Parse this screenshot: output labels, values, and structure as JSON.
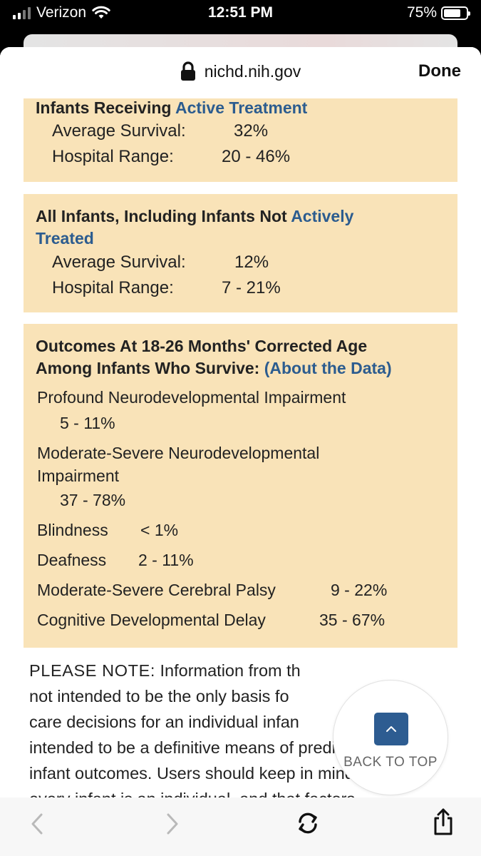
{
  "status_bar": {
    "carrier": "Verizon",
    "time": "12:51 PM",
    "battery": "75%",
    "battery_level": 0.75,
    "signal_bars_active": 2
  },
  "browser": {
    "url": "nichd.nih.gov",
    "done_label": "Done"
  },
  "box_active": {
    "title_plain": "Infants Receiving ",
    "title_link": "Active Treatment",
    "survival_label": "Average Survival:",
    "survival_value": "32%",
    "range_label": "Hospital Range:",
    "range_value": "20 - 46%"
  },
  "box_all": {
    "title_plain": "All Infants, Including Infants Not ",
    "title_link_1": "Actively",
    "title_link_2": "Treated",
    "survival_label": "Average Survival:",
    "survival_value": "12%",
    "range_label": "Hospital Range:",
    "range_value": "7 - 21%"
  },
  "box_outcomes": {
    "title_line1": "Outcomes At 18-26 Months' Corrected Age",
    "title_line2": "Among Infants Who Survive: ",
    "title_link": "(About the Data)",
    "profound_label": "Profound Neurodevelopmental Impairment",
    "profound_value": "5 - 11%",
    "moderate_label_1": "Moderate-Severe Neurodevelopmental",
    "moderate_label_2": "Impairment",
    "moderate_value": "37 - 78%",
    "blindness_label": "Blindness",
    "blindness_value": "< 1%",
    "deafness_label": "Deafness",
    "deafness_value": "2 - 11%",
    "palsy_label": "Moderate-Severe Cerebral Palsy",
    "palsy_value": "9 - 22%",
    "cognitive_label": "Cognitive Developmental Delay",
    "cognitive_value": "35 - 67%"
  },
  "note": {
    "heading": "PLEASE NOTE:",
    "line1": " Information from th",
    "line2": "not intended to be the only basis fo",
    "line3": "care decisions for an individual infan",
    "line4": "intended to be a definitive means of predicting",
    "line5": "infant outcomes. Users should keep in mind that",
    "line6": "every infant is an individual, and that factors"
  },
  "back_to_top": {
    "label": "BACK TO TOP"
  },
  "icons": {
    "wifi": "wifi-icon",
    "lock": "lock-icon",
    "back": "chevron-left-icon",
    "forward": "chevron-right-icon",
    "reload": "reload-icon",
    "share": "share-icon",
    "up": "chevron-up-icon"
  },
  "colors": {
    "box_background": "#f9e3b8",
    "link": "#2c5c8f",
    "back_to_top_button": "#2d5c91"
  }
}
